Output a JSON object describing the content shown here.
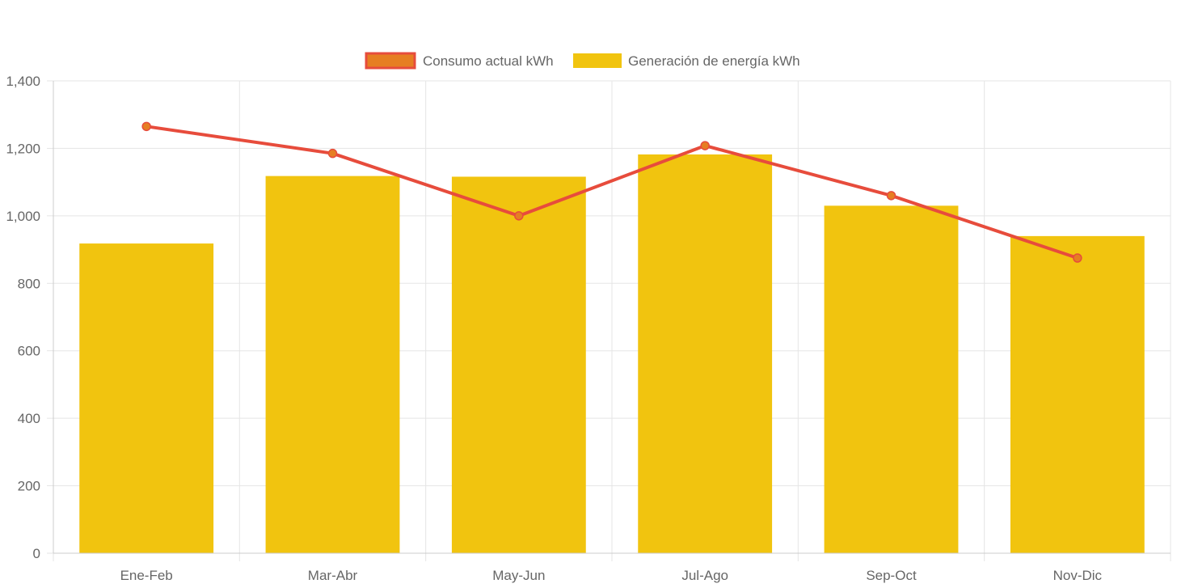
{
  "chart_data": {
    "type": "bar",
    "categories": [
      "Ene-Feb",
      "Mar-Abr",
      "May-Jun",
      "Jul-Ago",
      "Sep-Oct",
      "Nov-Dic"
    ],
    "series": [
      {
        "name": "Consumo actual kWh",
        "type": "line",
        "values": [
          1265,
          1185,
          1000,
          1208,
          1060,
          875
        ],
        "color": "#e74c3c",
        "point_fill": "#e67e22"
      },
      {
        "name": "Generación de energía kWh",
        "type": "bar",
        "values": [
          918,
          1118,
          1116,
          1182,
          1030,
          940
        ],
        "color": "#f1c40f"
      }
    ],
    "ylim": [
      0,
      1400
    ],
    "yticks": [
      "0",
      "200",
      "400",
      "600",
      "800",
      "1,000",
      "1,200",
      "1,400"
    ],
    "grid": true,
    "legend_position": "top-center"
  }
}
